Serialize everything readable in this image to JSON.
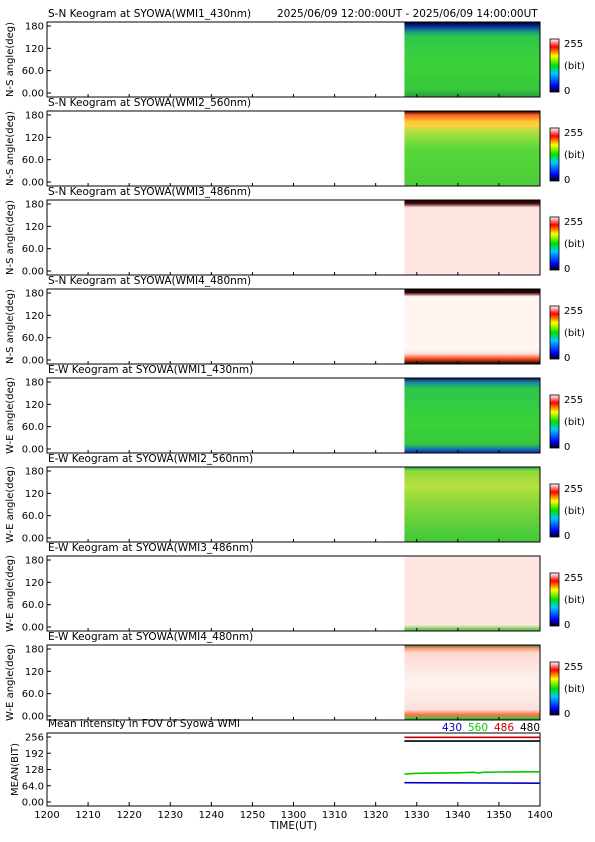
{
  "header": {
    "time_range": "2025/06/09 12:00:00UT - 2025/06/09 14:00:00UT"
  },
  "colorbar": {
    "max_label": "255",
    "unit_label": "(bit)",
    "min_label": "0"
  },
  "keogram_yticks": [
    "180",
    "120",
    "60.0",
    "0.00"
  ],
  "keograms": [
    {
      "title": "S-N Keogram at SYOWA(WMI1_430nm)",
      "ylabel": "N-S angle(deg)",
      "type": "heatmap",
      "data_start_min": 1327,
      "profile": "ns_430"
    },
    {
      "title": "S-N Keogram at SYOWA(WMI2_560nm)",
      "ylabel": "N-S angle(deg)",
      "type": "heatmap",
      "data_start_min": 1327,
      "profile": "ns_560"
    },
    {
      "title": "S-N Keogram at SYOWA(WMI3_486nm)",
      "ylabel": "N-S angle(deg)",
      "type": "heatmap",
      "data_start_min": 1327,
      "profile": "ns_486"
    },
    {
      "title": "S-N Keogram at SYOWA(WMI4_480nm)",
      "ylabel": "N-S angle(deg)",
      "type": "heatmap",
      "data_start_min": 1327,
      "profile": "ns_480"
    },
    {
      "title": "E-W Keogram at SYOWA(WMI1_430nm)",
      "ylabel": "W-E angle(deg)",
      "type": "heatmap",
      "data_start_min": 1327,
      "profile": "ew_430"
    },
    {
      "title": "E-W Keogram at SYOWA(WMI2_560nm)",
      "ylabel": "W-E angle(deg)",
      "type": "heatmap",
      "data_start_min": 1327,
      "profile": "ew_560"
    },
    {
      "title": "E-W Keogram at SYOWA(WMI3_486nm)",
      "ylabel": "W-E angle(deg)",
      "type": "heatmap",
      "data_start_min": 1327,
      "profile": "ew_486"
    },
    {
      "title": "E-W Keogram at SYOWA(WMI4_480nm)",
      "ylabel": "W-E angle(deg)",
      "type": "heatmap",
      "data_start_min": 1327,
      "profile": "ew_480"
    }
  ],
  "chart_data": {
    "type": "line",
    "title": "Mean intensity in FOV of Syowa WMI",
    "xlabel": "TIME(UT)",
    "ylabel": "MEAN(BIT)",
    "x_ticks": [
      "1200",
      "1210",
      "1220",
      "1230",
      "1240",
      "1250",
      "1300",
      "1310",
      "1320",
      "1330",
      "1340",
      "1350",
      "1400"
    ],
    "y_ticks": [
      "256",
      "192",
      "128",
      "64.0",
      "0.00"
    ],
    "xlim_minutes_after_1200": [
      0,
      120
    ],
    "ylim": [
      0,
      256
    ],
    "legend_placement": "top-right",
    "series": [
      {
        "name": "430",
        "color": "#0000cc",
        "x_minutes_after_1200": [
          87,
          120
        ],
        "values": [
          76,
          74
        ]
      },
      {
        "name": "560",
        "color": "#00cc00",
        "x_minutes_after_1200": [
          87,
          90,
          100,
          104,
          105,
          106,
          110,
          120
        ],
        "values": [
          110,
          113,
          115,
          117,
          114,
          117,
          118,
          119
        ]
      },
      {
        "name": "486",
        "color": "#cc0000",
        "x_minutes_after_1200": [
          87,
          120
        ],
        "values": [
          255,
          255
        ]
      },
      {
        "name": "480",
        "color": "#000000",
        "x_minutes_after_1200": [
          87,
          120
        ],
        "values": [
          240,
          240
        ]
      }
    ]
  }
}
